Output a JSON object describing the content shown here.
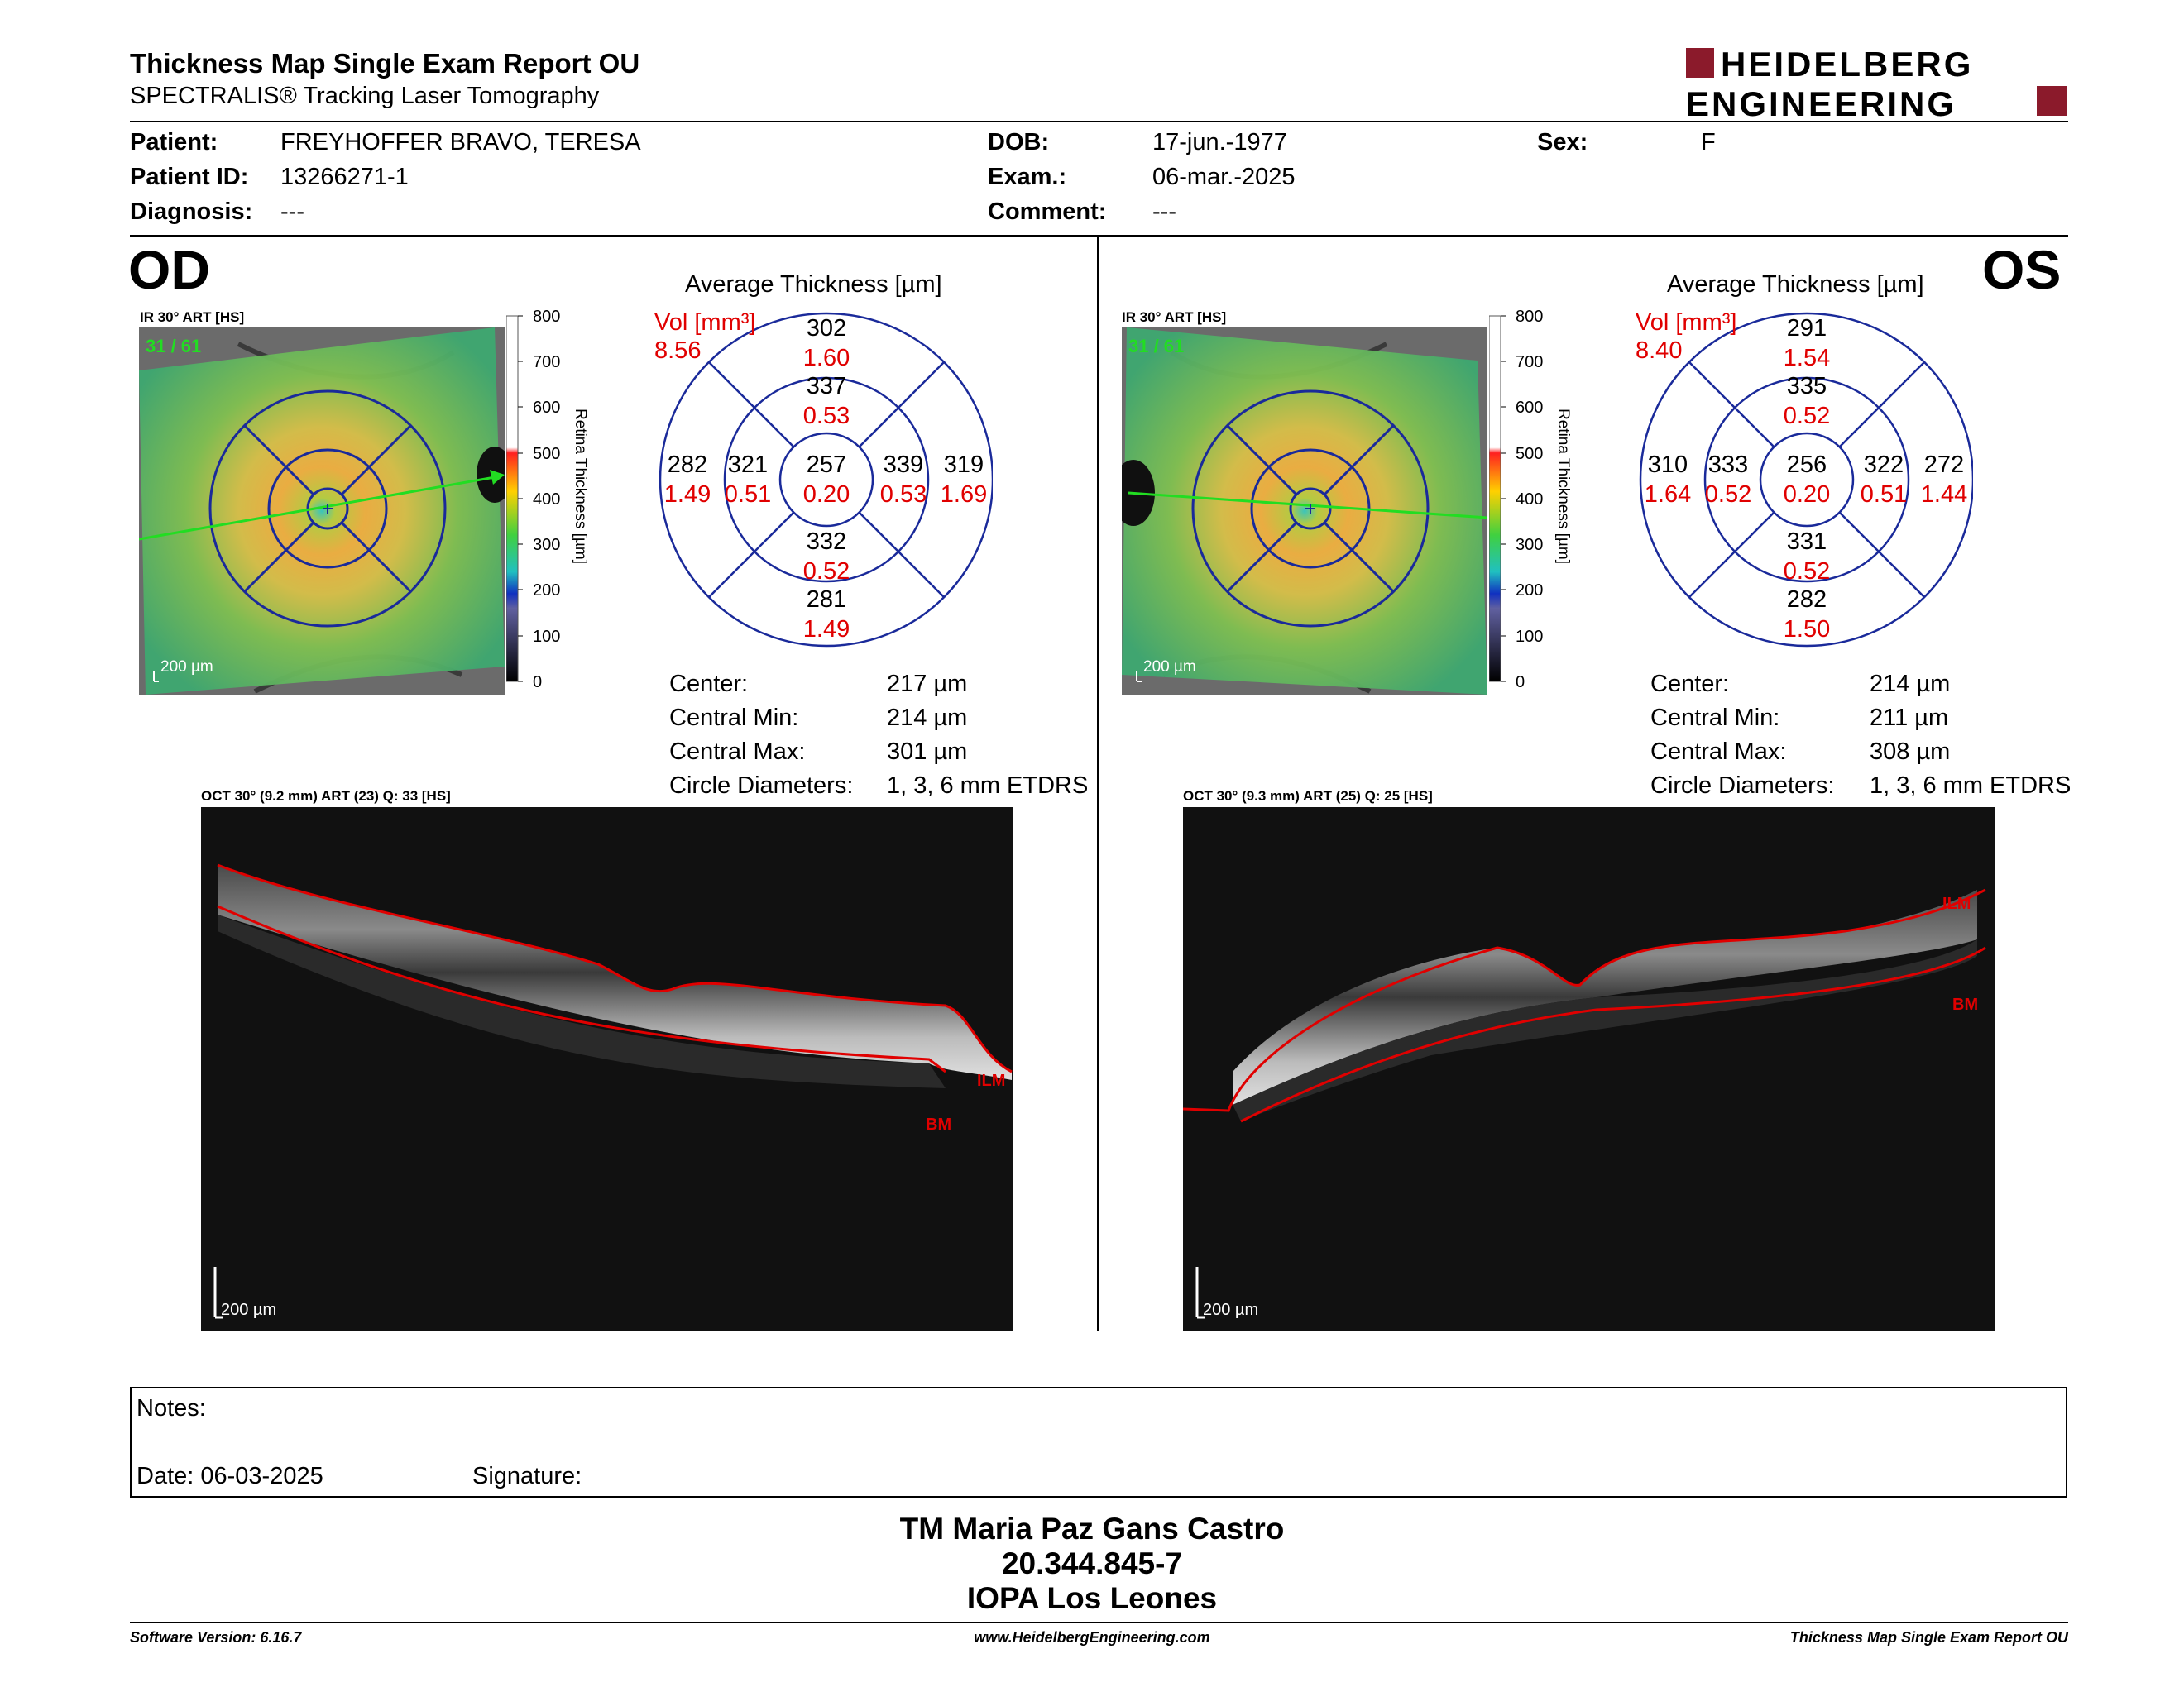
{
  "header": {
    "title": "Thickness Map Single Exam Report OU",
    "subtitle": "SPECTRALIS® Tracking Laser Tomography",
    "logo_line1": "HEIDELBERG",
    "logo_line2": "ENGINEERING"
  },
  "patient": {
    "patient_label": "Patient:",
    "patient_value": "FREYHOFFER BRAVO, TERESA",
    "id_label": "Patient ID:",
    "id_value": "13266271-1",
    "diagnosis_label": "Diagnosis:",
    "diagnosis_value": "---",
    "dob_label": "DOB:",
    "dob_value": "17-jun.-1977",
    "exam_label": "Exam.:",
    "exam_value": "06-mar.-2025",
    "comment_label": "Comment:",
    "comment_value": "---",
    "sex_label": "Sex:",
    "sex_value": "F"
  },
  "od": {
    "eye_label": "OD",
    "ir_caption": "IR 30° ART [HS]",
    "frame_counter": "31 / 61",
    "scale_label": "200 µm",
    "colorbar_ticks": [
      "800",
      "700",
      "600",
      "500",
      "400",
      "300",
      "200",
      "100",
      "0"
    ],
    "colorbar_title": "Retina  Thickness [µm]",
    "avg_title": "Average Thickness [µm]",
    "vol_label": "Vol [mm³]",
    "vol_value": "8.56",
    "etdrs": {
      "outer_sup": [
        "302",
        "1.60"
      ],
      "inner_sup": [
        "337",
        "0.53"
      ],
      "outer_temp": [
        "282",
        "1.49"
      ],
      "inner_temp": [
        "321",
        "0.51"
      ],
      "center": [
        "257",
        "0.20"
      ],
      "inner_nasal": [
        "339",
        "0.53"
      ],
      "outer_nasal": [
        "319",
        "1.69"
      ],
      "inner_inf": [
        "332",
        "0.52"
      ],
      "outer_inf": [
        "281",
        "1.49"
      ]
    },
    "stats": [
      {
        "label": "Center:",
        "value": "217 µm"
      },
      {
        "label": "Central Min:",
        "value": "214 µm"
      },
      {
        "label": "Central Max:",
        "value": "301 µm"
      },
      {
        "label": "Circle Diameters:",
        "value": "1, 3, 6 mm ETDRS"
      }
    ],
    "oct_caption": "OCT 30° (9.2 mm) ART (23) Q: 33 [HS]",
    "oct_scale": "200 µm",
    "ilm": "ILM",
    "bm": "BM"
  },
  "os": {
    "eye_label": "OS",
    "ir_caption": "IR 30° ART [HS]",
    "frame_counter": "31 / 61",
    "scale_label": "200 µm",
    "colorbar_ticks": [
      "800",
      "700",
      "600",
      "500",
      "400",
      "300",
      "200",
      "100",
      "0"
    ],
    "colorbar_title": "Retina  Thickness [µm]",
    "avg_title": "Average Thickness [µm]",
    "vol_label": "Vol [mm³]",
    "vol_value": "8.40",
    "etdrs": {
      "outer_sup": [
        "291",
        "1.54"
      ],
      "inner_sup": [
        "335",
        "0.52"
      ],
      "outer_temp": [
        "310",
        "1.64"
      ],
      "inner_temp": [
        "333",
        "0.52"
      ],
      "center": [
        "256",
        "0.20"
      ],
      "inner_nasal": [
        "322",
        "0.51"
      ],
      "outer_nasal": [
        "272",
        "1.44"
      ],
      "inner_inf": [
        "331",
        "0.52"
      ],
      "outer_inf": [
        "282",
        "1.50"
      ]
    },
    "stats": [
      {
        "label": "Center:",
        "value": "214 µm"
      },
      {
        "label": "Central Min:",
        "value": "211 µm"
      },
      {
        "label": "Central Max:",
        "value": "308 µm"
      },
      {
        "label": "Circle Diameters:",
        "value": "1, 3, 6 mm ETDRS"
      }
    ],
    "oct_caption": "OCT 30° (9.3 mm) ART (25) Q: 25 [HS]",
    "oct_scale": "200 µm",
    "ilm": "ILM",
    "bm": "BM"
  },
  "notes": {
    "notes_label": "Notes:",
    "date_label": "Date: 06-03-2025",
    "signature_label": "Signature:"
  },
  "signoff": {
    "name": "TM Maria Paz Gans Castro",
    "rut": "20.344.845-7",
    "institution": "IOPA Los Leones"
  },
  "footer": {
    "software": "Software Version: 6.16.7",
    "website": "www.HeidelbergEngineering.com",
    "report": "Thickness Map Single Exam Report OU"
  },
  "colors": {
    "vol_red": "#e00000",
    "grid_blue": "#1a2a9a",
    "logo_red": "#8b1a2b",
    "scan_green": "#22dd22"
  }
}
